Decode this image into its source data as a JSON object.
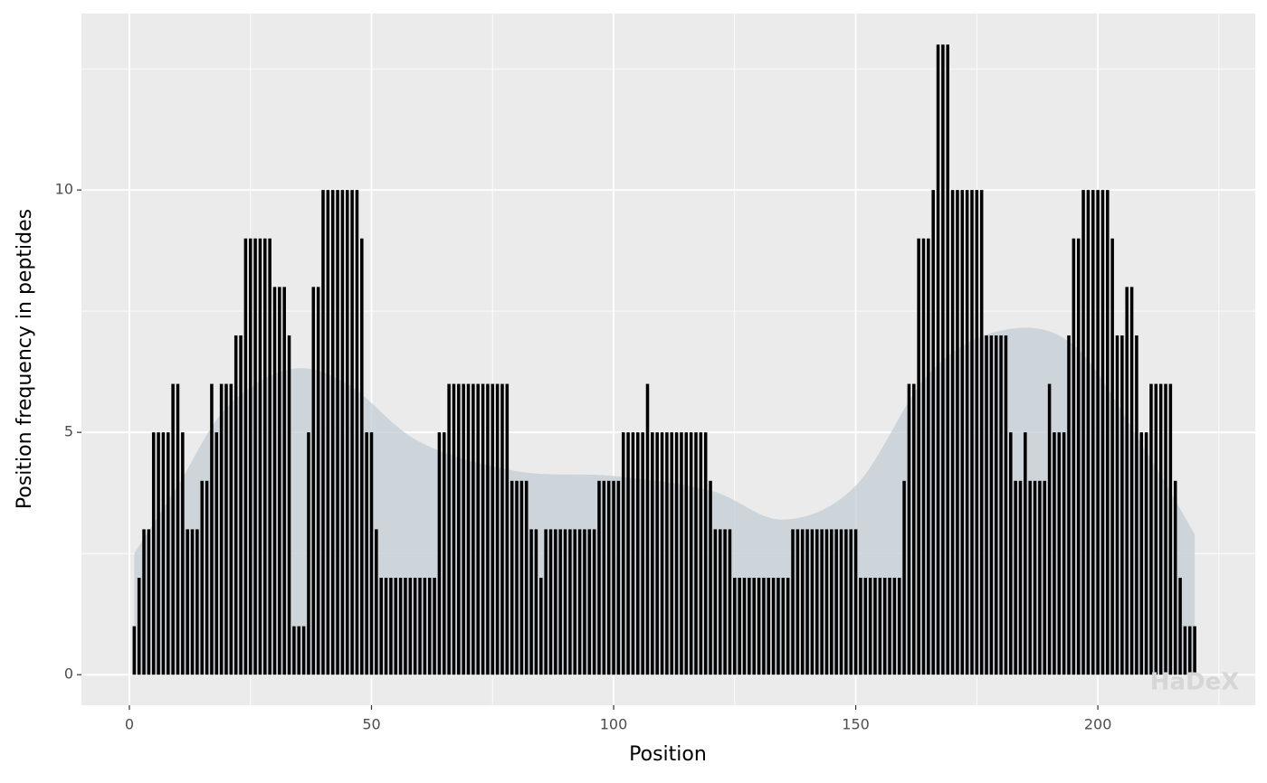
{
  "chart_data": {
    "type": "bar",
    "x_label": "Position",
    "y_label": "Position frequency in peptides",
    "watermark": "HaDeX",
    "color": "#000000",
    "grid": true,
    "xlim": [
      -9.9,
      232.5
    ],
    "ylim": [
      -0.63,
      13.64
    ],
    "xticks": [
      0,
      50,
      100,
      150,
      200
    ],
    "yticks": [
      0,
      5,
      10
    ],
    "x": [
      1,
      2,
      3,
      4,
      5,
      6,
      7,
      8,
      9,
      10,
      11,
      12,
      13,
      14,
      15,
      16,
      17,
      18,
      19,
      20,
      21,
      22,
      23,
      24,
      25,
      26,
      27,
      28,
      29,
      30,
      31,
      32,
      33,
      34,
      35,
      36,
      37,
      38,
      39,
      40,
      41,
      42,
      43,
      44,
      45,
      46,
      47,
      48,
      49,
      50,
      51,
      52,
      53,
      54,
      55,
      56,
      57,
      58,
      59,
      60,
      61,
      62,
      63,
      64,
      65,
      66,
      67,
      68,
      69,
      70,
      71,
      72,
      73,
      74,
      75,
      76,
      77,
      78,
      79,
      80,
      81,
      82,
      83,
      84,
      85,
      86,
      87,
      88,
      89,
      90,
      91,
      92,
      93,
      94,
      95,
      96,
      97,
      98,
      99,
      100,
      101,
      102,
      103,
      104,
      105,
      106,
      107,
      108,
      109,
      110,
      111,
      112,
      113,
      114,
      115,
      116,
      117,
      118,
      119,
      120,
      121,
      122,
      123,
      124,
      125,
      126,
      127,
      128,
      129,
      130,
      131,
      132,
      133,
      134,
      135,
      136,
      137,
      138,
      139,
      140,
      141,
      142,
      143,
      144,
      145,
      146,
      147,
      148,
      149,
      150,
      151,
      152,
      153,
      154,
      155,
      156,
      157,
      158,
      159,
      160,
      161,
      162,
      163,
      164,
      165,
      166,
      167,
      168,
      169,
      170,
      171,
      172,
      173,
      174,
      175,
      176,
      177,
      178,
      179,
      180,
      181,
      182,
      183,
      184,
      185,
      186,
      187,
      188,
      189,
      190,
      191,
      192,
      193,
      194,
      195,
      196,
      197,
      198,
      199,
      200,
      201,
      202,
      203,
      204,
      205,
      206,
      207,
      208,
      209,
      210,
      211,
      212,
      213,
      214,
      215,
      216,
      217,
      218,
      219,
      220
    ],
    "values": [
      1,
      2,
      3,
      3,
      5,
      5,
      5,
      5,
      6,
      6,
      5,
      3,
      3,
      3,
      4,
      4,
      6,
      5,
      6,
      6,
      6,
      7,
      7,
      9,
      9,
      9,
      9,
      9,
      9,
      8,
      8,
      8,
      7,
      1,
      1,
      1,
      5,
      8,
      8,
      10,
      10,
      10,
      10,
      10,
      10,
      10,
      10,
      9,
      5,
      5,
      3,
      2,
      2,
      2,
      2,
      2,
      2,
      2,
      2,
      2,
      2,
      2,
      2,
      5,
      5,
      6,
      6,
      6,
      6,
      6,
      6,
      6,
      6,
      6,
      6,
      6,
      6,
      6,
      4,
      4,
      4,
      4,
      3,
      3,
      2,
      3,
      3,
      3,
      3,
      3,
      3,
      3,
      3,
      3,
      3,
      3,
      4,
      4,
      4,
      4,
      4,
      5,
      5,
      5,
      5,
      5,
      6,
      5,
      5,
      5,
      5,
      5,
      5,
      5,
      5,
      5,
      5,
      5,
      5,
      4,
      3,
      3,
      3,
      3,
      2,
      2,
      2,
      2,
      2,
      2,
      2,
      2,
      2,
      2,
      2,
      2,
      3,
      3,
      3,
      3,
      3,
      3,
      3,
      3,
      3,
      3,
      3,
      3,
      3,
      3,
      2,
      2,
      2,
      2,
      2,
      2,
      2,
      2,
      2,
      4,
      6,
      6,
      9,
      9,
      9,
      10,
      13,
      13,
      13,
      10,
      10,
      10,
      10,
      10,
      10,
      10,
      7,
      7,
      7,
      7,
      7,
      5,
      4,
      4,
      5,
      4,
      4,
      4,
      4,
      6,
      5,
      5,
      5,
      7,
      9,
      9,
      10,
      10,
      10,
      10,
      10,
      10,
      9,
      7,
      7,
      8,
      8,
      7,
      5,
      5,
      6,
      6,
      6,
      6,
      6,
      4,
      2,
      1,
      1,
      1
    ],
    "band": {
      "color": "#c4cdd4",
      "x": [
        1,
        10,
        20,
        33,
        45,
        60,
        80,
        100,
        120,
        135,
        150,
        165,
        180,
        195,
        210,
        220
      ],
      "upper": [
        2.5,
        3.9,
        5.5,
        6.3,
        6.0,
        4.8,
        4.2,
        4.1,
        3.8,
        3.2,
        3.9,
        6.2,
        7.1,
        6.8,
        4.6,
        2.9
      ]
    }
  }
}
